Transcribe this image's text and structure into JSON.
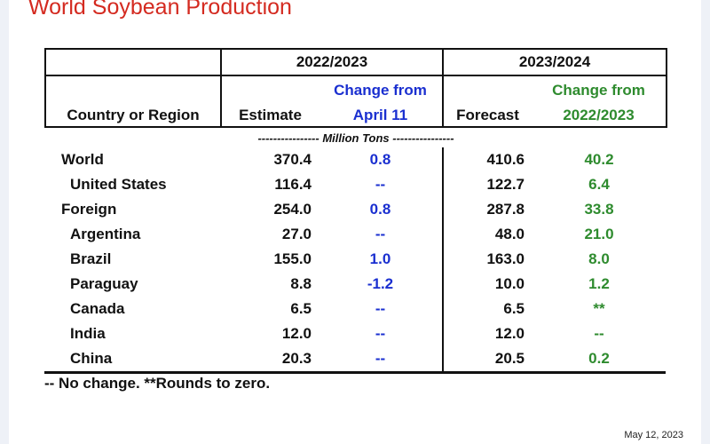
{
  "title": "World Soybean Production",
  "header": {
    "year1": "2022/2023",
    "year2": "2023/2024",
    "col_country": "Country or Region",
    "col_estimate": "Estimate",
    "col_change1_line1": "Change from",
    "col_change1_line2": "April 11",
    "col_forecast": "Forecast",
    "col_change2_line1": "Change from",
    "col_change2_line2": "2022/2023"
  },
  "units": "---------------- Million Tons ----------------",
  "rows": [
    {
      "name": "World",
      "estimate": "370.4",
      "change1": "0.8",
      "forecast": "410.6",
      "change2": "40.2"
    },
    {
      "name": "United States",
      "estimate": "116.4",
      "change1": "--",
      "forecast": "122.7",
      "change2": "6.4"
    },
    {
      "name": "Foreign",
      "estimate": "254.0",
      "change1": "0.8",
      "forecast": "287.8",
      "change2": "33.8"
    },
    {
      "name": "Argentina",
      "estimate": "27.0",
      "change1": "--",
      "forecast": "48.0",
      "change2": "21.0"
    },
    {
      "name": "Brazil",
      "estimate": "155.0",
      "change1": "1.0",
      "forecast": "163.0",
      "change2": "8.0"
    },
    {
      "name": "Paraguay",
      "estimate": "8.8",
      "change1": "-1.2",
      "forecast": "10.0",
      "change2": "1.2"
    },
    {
      "name": "Canada",
      "estimate": "6.5",
      "change1": "--",
      "forecast": "6.5",
      "change2": "**"
    },
    {
      "name": "India",
      "estimate": "12.0",
      "change1": "--",
      "forecast": "12.0",
      "change2": "--"
    },
    {
      "name": "China",
      "estimate": "20.3",
      "change1": "--",
      "forecast": "20.5",
      "change2": "0.2"
    }
  ],
  "footnote": "-- No change.  **Rounds to zero.",
  "date": "May 12, 2023",
  "colors": {
    "title": "#d42a20",
    "change_april": "#1a2fd0",
    "change_year": "#2e8b2e"
  }
}
